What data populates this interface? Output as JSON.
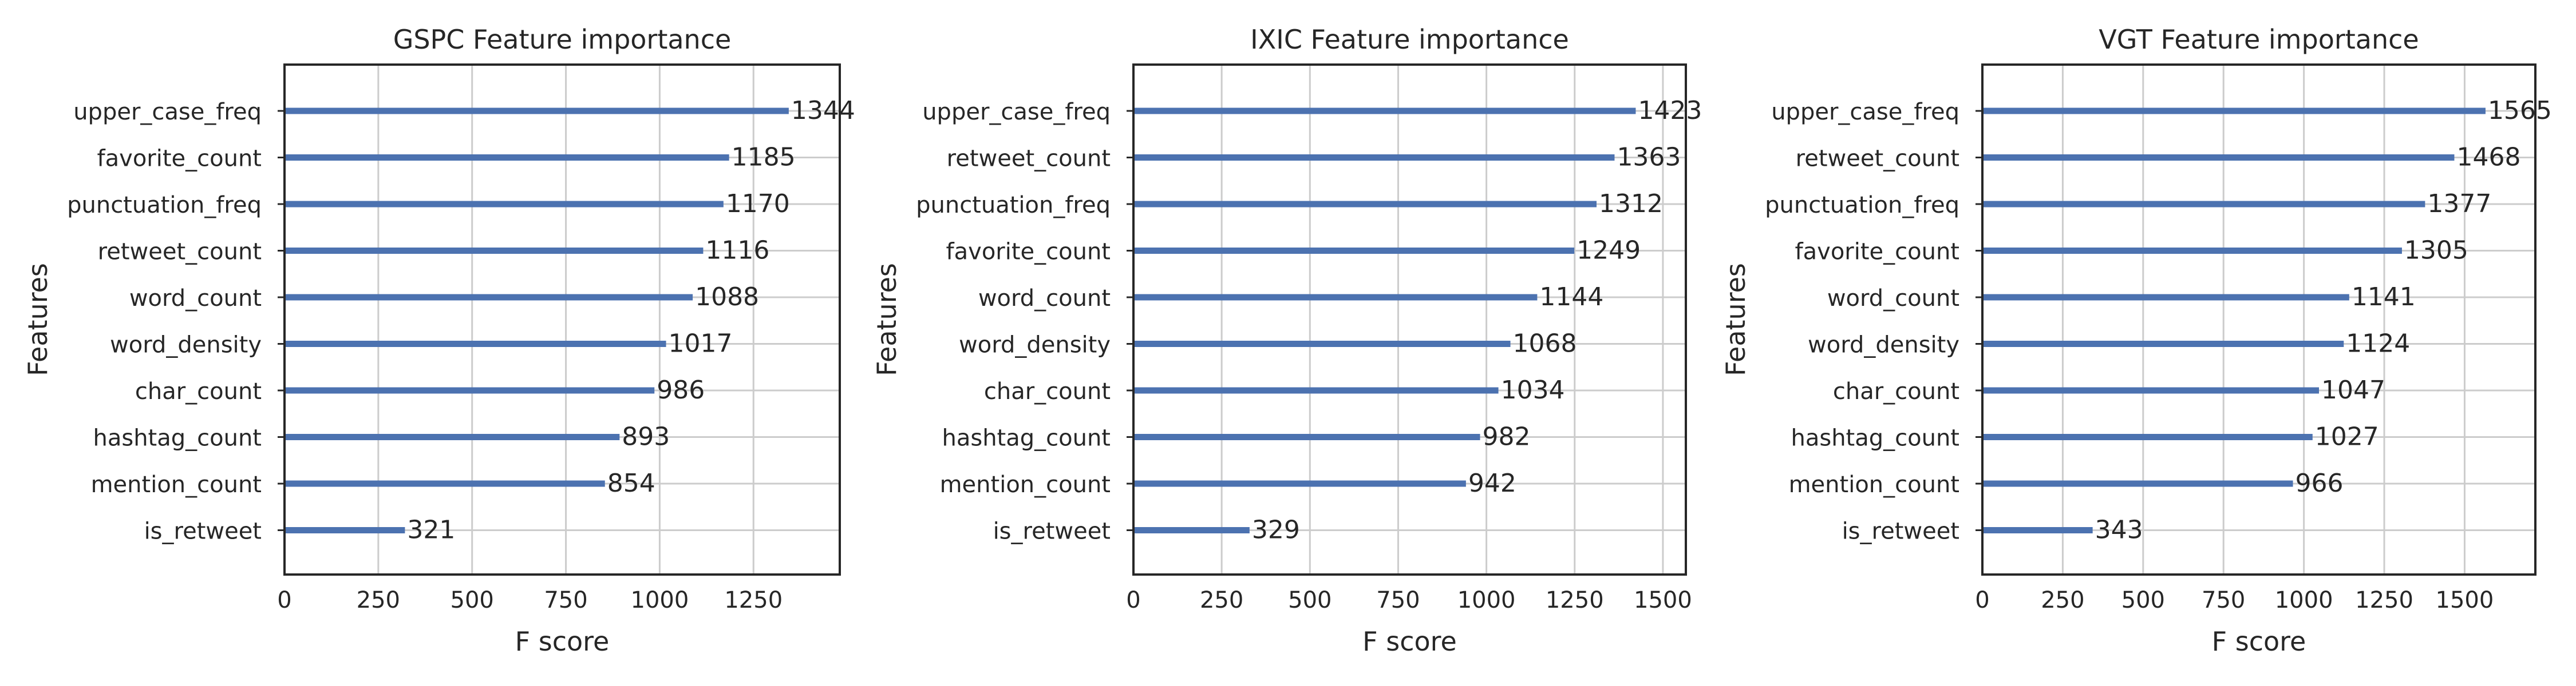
{
  "chart_data": [
    {
      "type": "bar",
      "orientation": "horizontal",
      "title": "GSPC Feature importance",
      "xlabel": "F score",
      "ylabel": "Features",
      "xlim": [
        0,
        1480
      ],
      "xticks": [
        0,
        250,
        500,
        750,
        1000,
        1250
      ],
      "grid": true,
      "categories": [
        "upper_case_freq",
        "favorite_count",
        "punctuation_freq",
        "retweet_count",
        "word_count",
        "word_density",
        "char_count",
        "hashtag_count",
        "mention_count",
        "is_retweet"
      ],
      "values": [
        1344,
        1185,
        1170,
        1116,
        1088,
        1017,
        986,
        893,
        854,
        321
      ],
      "color": "#4c72b0"
    },
    {
      "type": "bar",
      "orientation": "horizontal",
      "title": "IXIC Feature importance",
      "xlabel": "F score",
      "ylabel": "Features",
      "xlim": [
        0,
        1565
      ],
      "xticks": [
        0,
        250,
        500,
        750,
        1000,
        1250,
        1500
      ],
      "grid": true,
      "categories": [
        "upper_case_freq",
        "retweet_count",
        "punctuation_freq",
        "favorite_count",
        "word_count",
        "word_density",
        "char_count",
        "hashtag_count",
        "mention_count",
        "is_retweet"
      ],
      "values": [
        1423,
        1363,
        1312,
        1249,
        1144,
        1068,
        1034,
        982,
        942,
        329
      ],
      "color": "#4c72b0"
    },
    {
      "type": "bar",
      "orientation": "horizontal",
      "title": "VGT Feature importance",
      "xlabel": "F score",
      "ylabel": "Features",
      "xlim": [
        0,
        1720
      ],
      "xticks": [
        0,
        250,
        500,
        750,
        1000,
        1250,
        1500
      ],
      "grid": true,
      "categories": [
        "upper_case_freq",
        "retweet_count",
        "punctuation_freq",
        "favorite_count",
        "word_count",
        "word_density",
        "char_count",
        "hashtag_count",
        "mention_count",
        "is_retweet"
      ],
      "values": [
        1565,
        1468,
        1377,
        1305,
        1141,
        1124,
        1047,
        1027,
        966,
        343
      ],
      "color": "#4c72b0"
    }
  ]
}
